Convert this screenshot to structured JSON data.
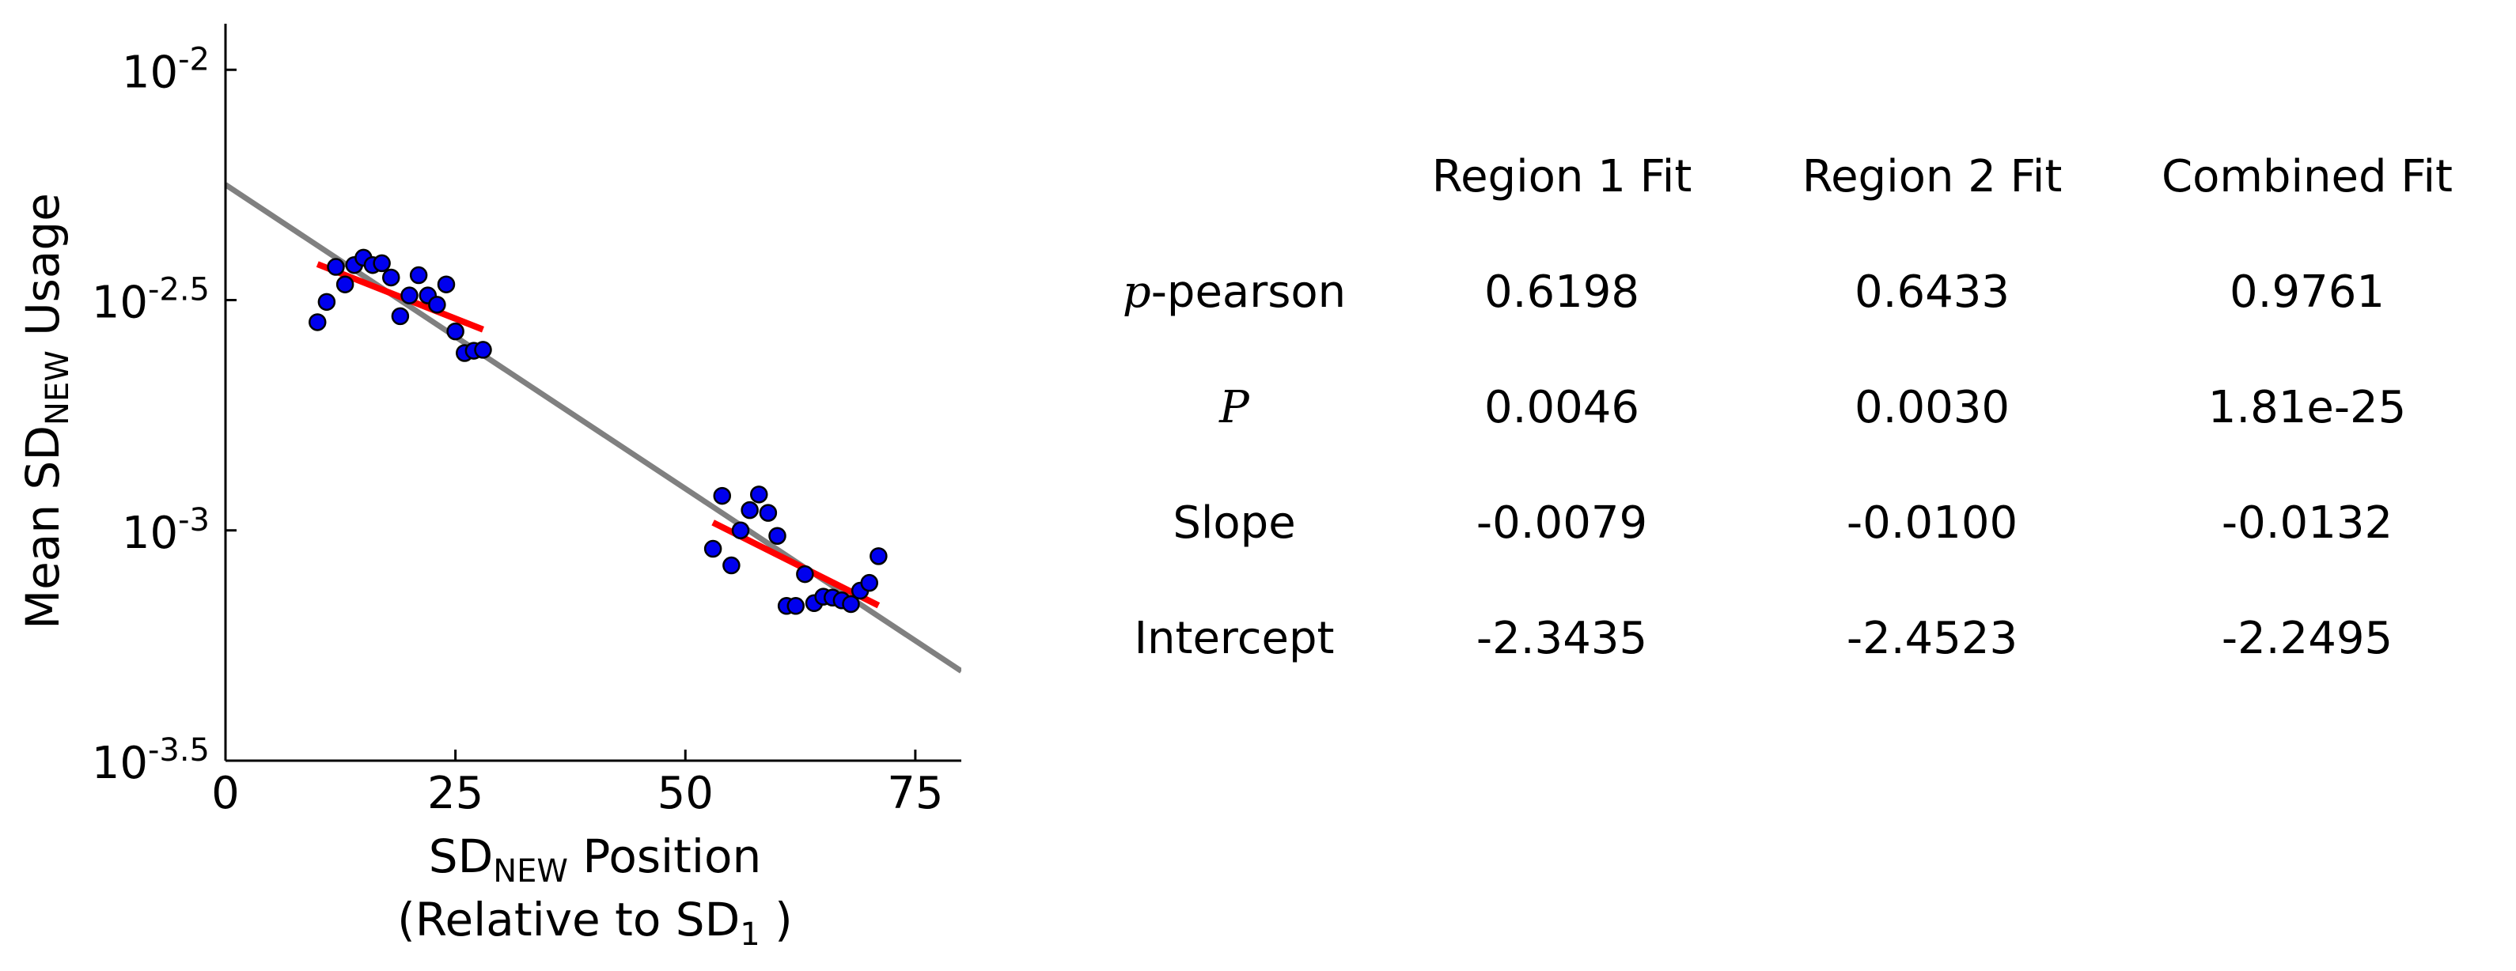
{
  "chart_data": {
    "type": "scatter",
    "ylabel": {
      "main": "Mean SD",
      "sub": "NEW",
      "tail": " Usage"
    },
    "xlabel": {
      "line1": {
        "main": "SD",
        "sub": "NEW",
        "tail": " Position"
      },
      "line2": {
        "main": "(Relative to SD",
        "sub": "1",
        "tail": " )"
      }
    },
    "xlim": [
      0,
      80
    ],
    "ylim_log10": [
      -3.5,
      -1.9
    ],
    "y_scale": "log10",
    "x_ticks": [
      {
        "value": 0,
        "label": "0"
      },
      {
        "value": 25,
        "label": "25"
      },
      {
        "value": 50,
        "label": "50"
      },
      {
        "value": 75,
        "label": "75"
      }
    ],
    "y_ticks": [
      {
        "log10": -2.0,
        "base": "10",
        "exp": "-2"
      },
      {
        "log10": -2.5,
        "base": "10",
        "exp": "-2.5"
      },
      {
        "log10": -3.0,
        "base": "10",
        "exp": "-3"
      },
      {
        "log10": -3.5,
        "base": "10",
        "exp": "-3.5"
      }
    ],
    "points_color": "#0000ee",
    "points": [
      [
        10,
        -2.548
      ],
      [
        11,
        -2.504
      ],
      [
        12,
        -2.428
      ],
      [
        13,
        -2.466
      ],
      [
        14,
        -2.424
      ],
      [
        15,
        -2.408
      ],
      [
        16,
        -2.424
      ],
      [
        17,
        -2.42
      ],
      [
        18,
        -2.451
      ],
      [
        19,
        -2.535
      ],
      [
        20,
        -2.49
      ],
      [
        21,
        -2.446
      ],
      [
        22,
        -2.49
      ],
      [
        23,
        -2.51
      ],
      [
        24,
        -2.466
      ],
      [
        25,
        -2.568
      ],
      [
        26,
        -2.615
      ],
      [
        27,
        -2.61
      ],
      [
        28,
        -2.608
      ],
      [
        53,
        -3.04
      ],
      [
        54,
        -2.925
      ],
      [
        55,
        -3.076
      ],
      [
        56,
        -3.0
      ],
      [
        57,
        -2.956
      ],
      [
        58,
        -2.922
      ],
      [
        59,
        -2.962
      ],
      [
        60,
        -3.012
      ],
      [
        61,
        -3.164
      ],
      [
        62,
        -3.164
      ],
      [
        63,
        -3.095
      ],
      [
        64,
        -3.158
      ],
      [
        65,
        -3.144
      ],
      [
        66,
        -3.146
      ],
      [
        67,
        -3.152
      ],
      [
        68,
        -3.16
      ],
      [
        69,
        -3.131
      ],
      [
        70,
        -3.114
      ],
      [
        71,
        -3.056
      ]
    ],
    "fit_lines": [
      {
        "color": "#ff0000",
        "x": [
          10,
          28
        ],
        "y": [
          -2.422,
          -2.564
        ]
      },
      {
        "color": "#ff0000",
        "x": [
          53,
          71
        ],
        "y": [
          -2.983,
          -3.163
        ]
      },
      {
        "color": "#808080",
        "x": [
          0,
          80
        ],
        "y": [
          -2.2495,
          -3.3055
        ]
      }
    ]
  },
  "table": {
    "headers": [
      "",
      "Region 1 Fit",
      "Region 2 Fit",
      "Combined Fit"
    ],
    "rows": [
      {
        "math_label": "p",
        "label": "-pearson",
        "values": [
          "0.6198",
          "0.6433",
          "0.9761"
        ]
      },
      {
        "math_label": "P",
        "label": "",
        "values": [
          "0.0046",
          "0.0030",
          "1.81e-25"
        ]
      },
      {
        "math_label": "",
        "label": "Slope",
        "values": [
          "-0.0079",
          "-0.0100",
          "-0.0132"
        ]
      },
      {
        "math_label": "",
        "label": "Intercept",
        "values": [
          "-2.3435",
          "-2.4523",
          "-2.2495"
        ]
      }
    ]
  }
}
